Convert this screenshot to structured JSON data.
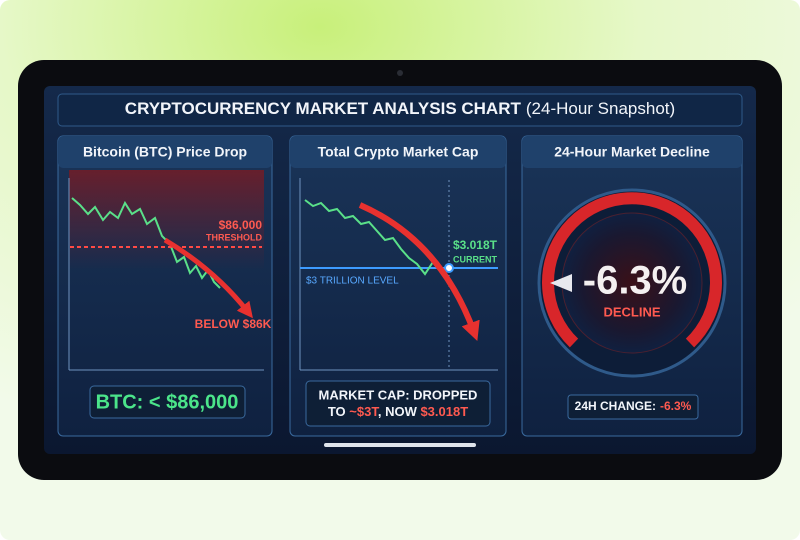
{
  "title": {
    "main": "CRYPTOCURRENCY MARKET ANALYSIS CHART",
    "suffix": "(24-Hour Snapshot)"
  },
  "panels": [
    {
      "title": "Bitcoin (BTC) Price Drop",
      "threshold_value": "$86,000",
      "threshold_label": "THRESHOLD",
      "annotation": "BELOW $86K",
      "footer": "BTC: < $86,000"
    },
    {
      "title": "Total Crypto Market Cap",
      "current_value": "$3.018T",
      "current_label": "CURRENT",
      "level_label": "$3 TRILLION LEVEL",
      "footer_line1": "MARKET CAP: DROPPED",
      "footer_line2": [
        "TO ",
        "~$3T",
        ", NOW ",
        "$3.018T"
      ]
    },
    {
      "title": "24-Hour Market Decline",
      "value": "-6.3%",
      "value_label": "DECLINE",
      "footer_label": "24H CHANGE:",
      "footer_value": "-6.3%"
    }
  ]
}
